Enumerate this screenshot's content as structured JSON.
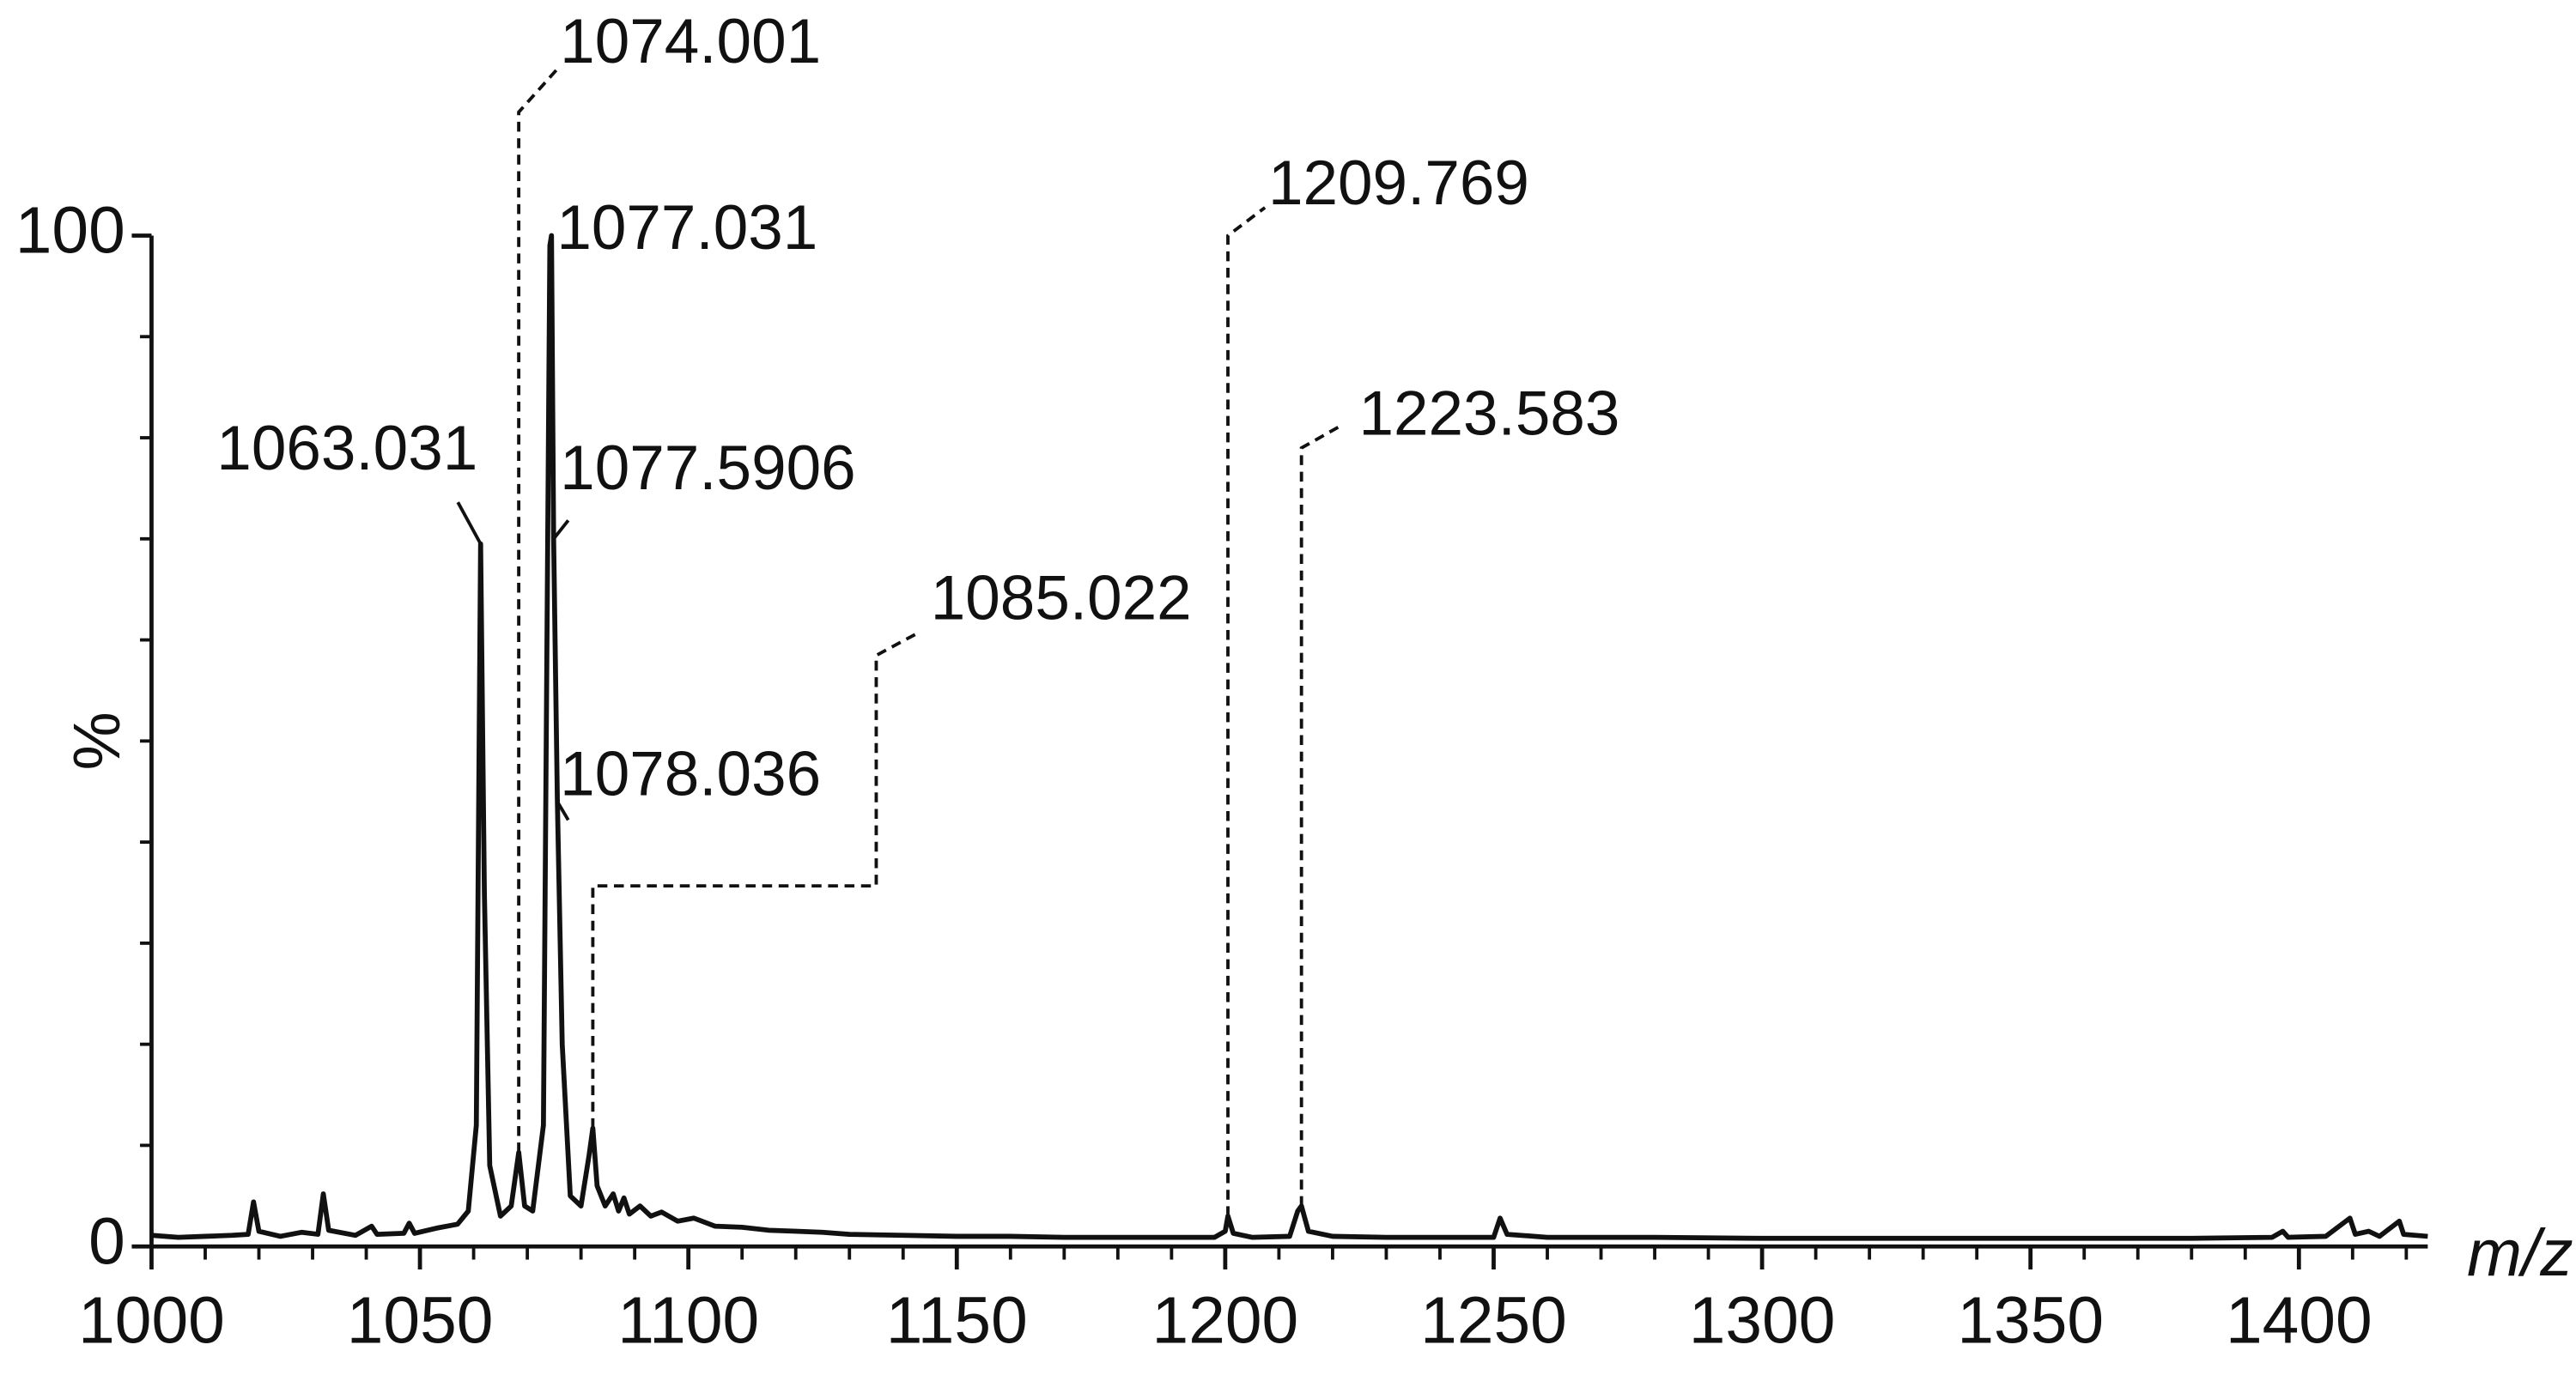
{
  "chart_data": {
    "type": "line",
    "xlabel": "m/z",
    "ylabel": "%",
    "xlim": [
      1000,
      1424
    ],
    "ylim": [
      0,
      100
    ],
    "xticks": [
      1000,
      1050,
      1100,
      1150,
      1200,
      1250,
      1300,
      1350,
      1400
    ],
    "xminor": [
      1000,
      1010,
      1020,
      1030,
      1040,
      1050,
      1060,
      1070,
      1080,
      1090,
      1100,
      1110,
      1120,
      1130,
      1140,
      1150,
      1160,
      1170,
      1180,
      1190,
      1200,
      1210,
      1220,
      1230,
      1240,
      1250,
      1260,
      1270,
      1280,
      1290,
      1300,
      1310,
      1320,
      1330,
      1340,
      1350,
      1360,
      1370,
      1380,
      1390,
      1400,
      1410,
      1420
    ],
    "yticks": [
      0,
      100
    ],
    "yminor": [
      10,
      20,
      30,
      40,
      50,
      60,
      70,
      80,
      90
    ],
    "color": "#111111",
    "x": [
      1000,
      1005,
      1010,
      1015,
      1018,
      1019,
      1020,
      1024,
      1028,
      1031,
      1032,
      1033,
      1038,
      1041,
      1042,
      1047,
      1048,
      1049,
      1053,
      1057,
      1059,
      1060.5,
      1061.3,
      1062,
      1063,
      1065,
      1067,
      1068.4,
      1069.5,
      1071,
      1073,
      1074.2,
      1074.5,
      1074.9,
      1075.6,
      1076.5,
      1078,
      1080,
      1081.5,
      1082.2,
      1083,
      1084.5,
      1086,
      1087,
      1088,
      1089,
      1091,
      1093,
      1095,
      1098,
      1101,
      1105,
      1110,
      1115,
      1120,
      1125,
      1130,
      1140,
      1150,
      1160,
      1170,
      1180,
      1190,
      1198,
      1200,
      1200.5,
      1201.5,
      1205,
      1212,
      1213.5,
      1214.2,
      1215.5,
      1220,
      1230,
      1240,
      1250,
      1251.2,
      1252.5,
      1260,
      1280,
      1300,
      1320,
      1340,
      1360,
      1380,
      1395,
      1397,
      1398,
      1405,
      1409.5,
      1410.5,
      1413,
      1415,
      1418.7,
      1419.5,
      1424
    ],
    "values": [
      1.1,
      0.9,
      1.0,
      1.1,
      1.2,
      4.4,
      1.5,
      1.0,
      1.4,
      1.2,
      5.2,
      1.6,
      1.1,
      2.0,
      1.2,
      1.3,
      2.3,
      1.3,
      1.8,
      2.2,
      3.5,
      12,
      69.5,
      35,
      8,
      3,
      4,
      9.3,
      4,
      3.5,
      12,
      99,
      100,
      70,
      44,
      20,
      5,
      4,
      9,
      11.7,
      6,
      4,
      5.2,
      3.5,
      4.8,
      3.2,
      4,
      3,
      3.4,
      2.5,
      2.8,
      2,
      1.9,
      1.6,
      1.5,
      1.4,
      1.2,
      1.1,
      1.0,
      1.0,
      0.9,
      0.9,
      0.9,
      0.9,
      1.5,
      3.0,
      1.3,
      0.9,
      1.0,
      3.5,
      4.0,
      1.5,
      1.0,
      0.9,
      0.9,
      0.9,
      2.8,
      1.2,
      0.9,
      0.9,
      0.8,
      0.8,
      0.8,
      0.8,
      0.8,
      0.9,
      1.5,
      0.9,
      1.0,
      2.8,
      1.2,
      1.5,
      1.0,
      2.5,
      1.2,
      1.0
    ],
    "annotations": [
      {
        "text": "1063.031",
        "x": 1061.3,
        "y": 69.5
      },
      {
        "text": "1074.001",
        "x": 1068.4,
        "y": 9.3
      },
      {
        "text": "1077.031",
        "x": 1074.5,
        "y": 100
      },
      {
        "text": "1077.5906",
        "x": 1074.9,
        "y": 70
      },
      {
        "text": "1078.036",
        "x": 1075.6,
        "y": 44
      },
      {
        "text": "1085.022",
        "x": 1082.2,
        "y": 11.7
      },
      {
        "text": "1209.769",
        "x": 1200.5,
        "y": 3.0
      },
      {
        "text": "1223.583",
        "x": 1214.2,
        "y": 4.0
      }
    ]
  }
}
